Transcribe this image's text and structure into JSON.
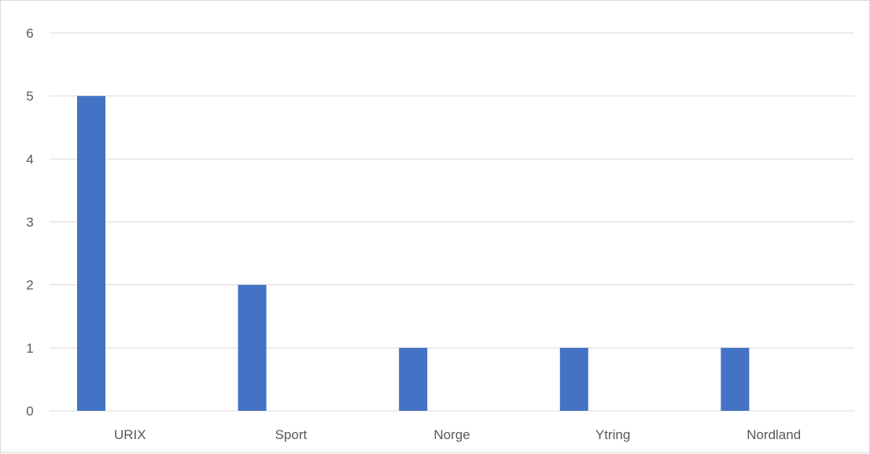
{
  "chart_data": {
    "type": "bar",
    "categories": [
      "URIX",
      "Sport",
      "Norge",
      "Ytring",
      "Nordland"
    ],
    "values": [
      5,
      2,
      1,
      1,
      1
    ],
    "yticks": [
      0,
      1,
      2,
      3,
      4,
      5,
      6
    ],
    "ylim": [
      0,
      6
    ],
    "grid": true,
    "bar_color": "#4472c4",
    "gridline_color": "#d9d9d9",
    "label_color": "#595959",
    "legend": "none"
  }
}
